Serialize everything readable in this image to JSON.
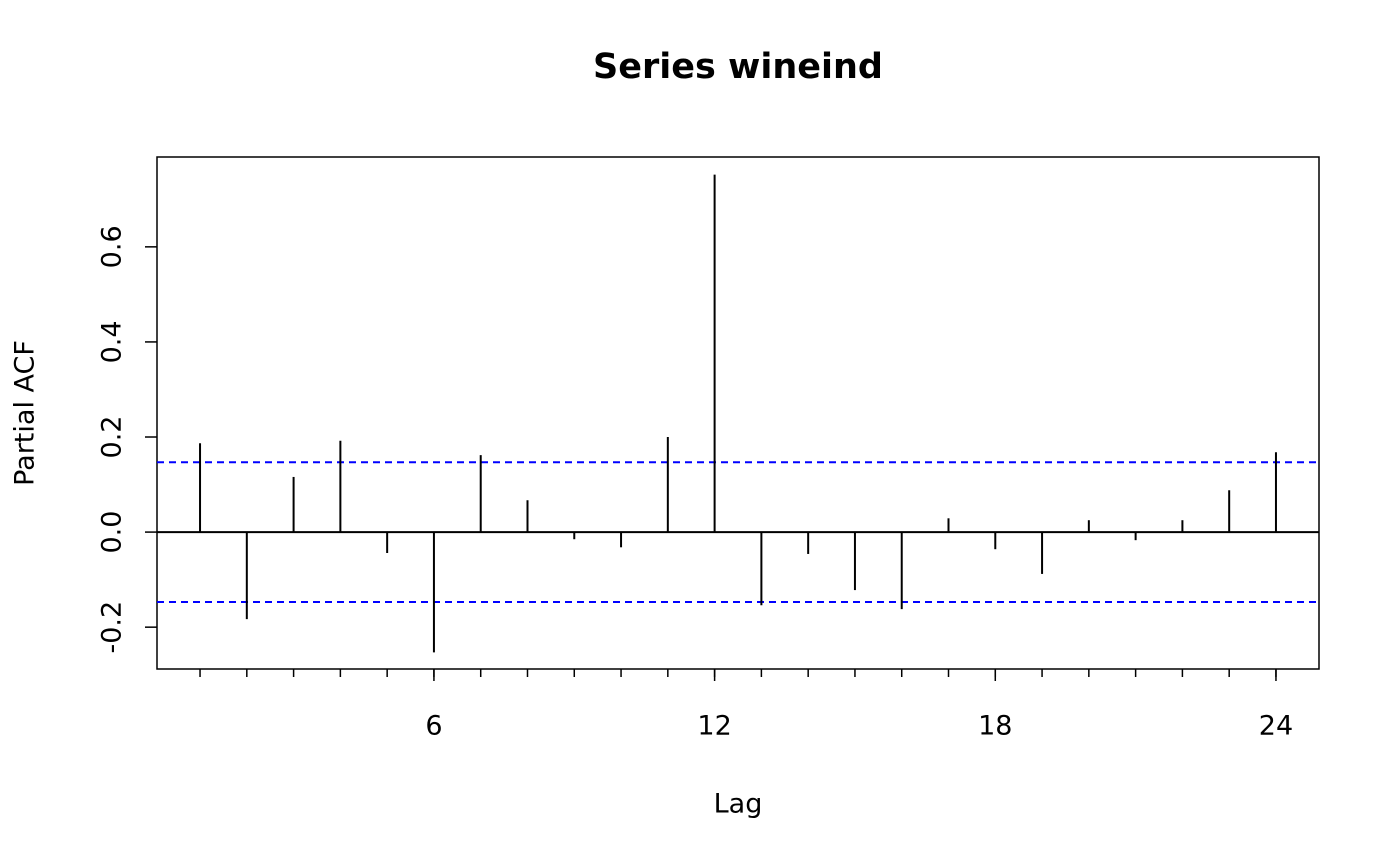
{
  "chart_data": {
    "type": "pacf",
    "title": "Series  wineind",
    "xlabel": "Lag",
    "ylabel": "Partial ACF",
    "x": [
      1,
      2,
      3,
      4,
      5,
      6,
      7,
      8,
      9,
      10,
      11,
      12,
      13,
      14,
      15,
      16,
      17,
      18,
      19,
      20,
      21,
      22,
      23,
      24
    ],
    "values": [
      0.187,
      -0.183,
      0.116,
      0.192,
      -0.044,
      -0.253,
      0.162,
      0.067,
      -0.015,
      -0.032,
      0.2,
      0.752,
      -0.154,
      -0.046,
      -0.122,
      -0.162,
      0.029,
      -0.036,
      -0.088,
      0.025,
      -0.017,
      0.025,
      0.088,
      0.168
    ],
    "color": "#000000",
    "ci_lines": [
      0.147,
      -0.147
    ],
    "ci_color": "#0000ff",
    "xlim": [
      0.08,
      24.92
    ],
    "ylim": [
      -0.288,
      0.789
    ],
    "xticks": [
      6,
      12,
      18,
      24
    ],
    "yticks": [
      -0.2,
      {
        "value": 0,
        "label": "0.0"
      },
      0.2,
      0.4,
      0.6
    ]
  }
}
